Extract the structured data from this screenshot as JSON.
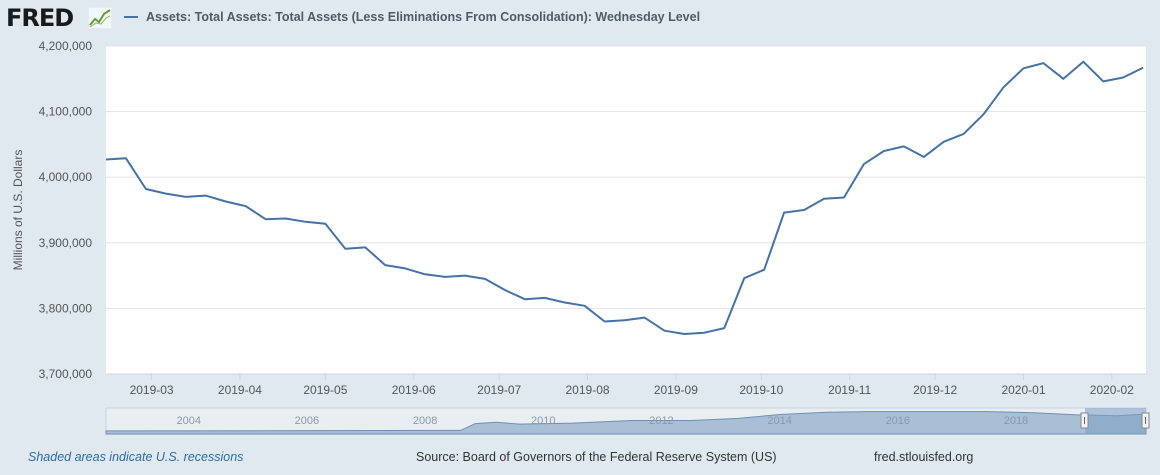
{
  "header": {
    "logo_text": "FRED",
    "logo_icon": "line-chart-icon",
    "series_title": "Assets: Total Assets: Total Assets (Less Eliminations From Consolidation): Wednesday Level"
  },
  "footer": {
    "recession_note": "Shaded areas indicate U.S. recessions",
    "source": "Source: Board of Governors of the Federal Reserve System (US)",
    "site": "fred.stlouisfed.org"
  },
  "colors": {
    "series": "#4572a7",
    "grid": "#e3e3e3",
    "navigator_fill": "#9fb8d3",
    "navigator_mask": "#7e9fc5"
  },
  "chart_data": {
    "type": "line",
    "title": "",
    "xlabel": "",
    "ylabel": "Millions of U.S. Dollars",
    "ylim": [
      3700000,
      4200000
    ],
    "xlim": [
      "2019-02-13",
      "2020-02-13"
    ],
    "yticks": [
      "3,700,000",
      "3,800,000",
      "3,900,000",
      "4,000,000",
      "4,100,000",
      "4,200,000"
    ],
    "xticks": [
      "2019-03",
      "2019-04",
      "2019-05",
      "2019-06",
      "2019-07",
      "2019-08",
      "2019-09",
      "2019-10",
      "2019-11",
      "2019-12",
      "2020-01",
      "2020-02"
    ],
    "grid": true,
    "legend": "top-left",
    "series": [
      {
        "name": "Assets: Total Assets: Total Assets (Less Eliminations From Consolidation): Wednesday Level",
        "x": [
          "2019-02-13",
          "2019-02-20",
          "2019-02-27",
          "2019-03-06",
          "2019-03-13",
          "2019-03-20",
          "2019-03-27",
          "2019-04-03",
          "2019-04-10",
          "2019-04-17",
          "2019-04-24",
          "2019-05-01",
          "2019-05-08",
          "2019-05-15",
          "2019-05-22",
          "2019-05-29",
          "2019-06-05",
          "2019-06-12",
          "2019-06-19",
          "2019-06-26",
          "2019-07-03",
          "2019-07-10",
          "2019-07-17",
          "2019-07-24",
          "2019-07-31",
          "2019-08-07",
          "2019-08-14",
          "2019-08-21",
          "2019-08-28",
          "2019-09-04",
          "2019-09-11",
          "2019-09-18",
          "2019-09-25",
          "2019-10-02",
          "2019-10-09",
          "2019-10-16",
          "2019-10-23",
          "2019-10-30",
          "2019-11-06",
          "2019-11-13",
          "2019-11-20",
          "2019-11-27",
          "2019-12-04",
          "2019-12-11",
          "2019-12-18",
          "2019-12-25",
          "2020-01-01",
          "2020-01-08",
          "2020-01-15",
          "2020-01-22",
          "2020-01-29",
          "2020-02-05",
          "2020-02-12"
        ],
        "values": [
          4027000,
          4029000,
          3982000,
          3975000,
          3970000,
          3972000,
          3963000,
          3956000,
          3936000,
          3937000,
          3932000,
          3929000,
          3891000,
          3893000,
          3866000,
          3861000,
          3852000,
          3848000,
          3850000,
          3845000,
          3828000,
          3814000,
          3816000,
          3809000,
          3804000,
          3780000,
          3782000,
          3786000,
          3766000,
          3761000,
          3763000,
          3770000,
          3846000,
          3859000,
          3946000,
          3950000,
          3967000,
          3969000,
          4020000,
          4040000,
          4047000,
          4031000,
          4054000,
          4066000,
          4096000,
          4137000,
          4166000,
          4174000,
          4150000,
          4176000,
          4146000,
          4152000,
          4167000
        ]
      }
    ],
    "navigator": {
      "xticks": [
        "2004",
        "2006",
        "2008",
        "2010",
        "2012",
        "2014",
        "2016",
        "2018"
      ]
    }
  }
}
